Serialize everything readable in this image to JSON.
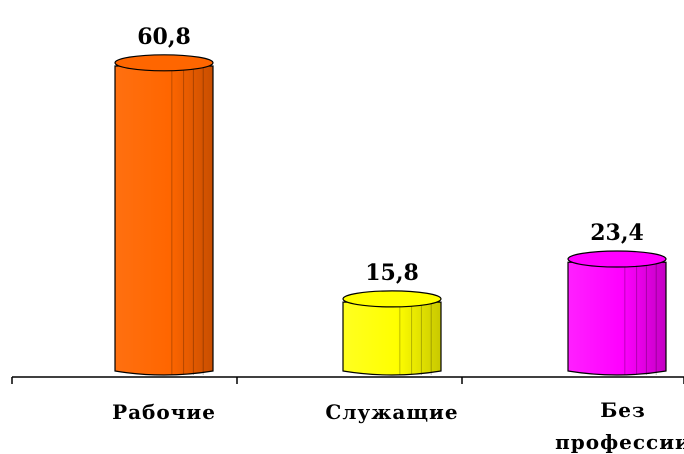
{
  "chart_data": {
    "type": "bar",
    "categories": [
      [
        "Рабочие"
      ],
      [
        "Служащие"
      ],
      [
        "Без",
        "профессии"
      ]
    ],
    "values": [
      60.8,
      15.8,
      23.4
    ],
    "data_labels": [
      "60,8",
      "15,8",
      "23,4"
    ],
    "colors": [
      "#FF6600",
      "#FFFF00",
      "#FF00FF"
    ],
    "ylim": [
      0,
      60.8
    ],
    "grid": false,
    "legend": "none"
  }
}
